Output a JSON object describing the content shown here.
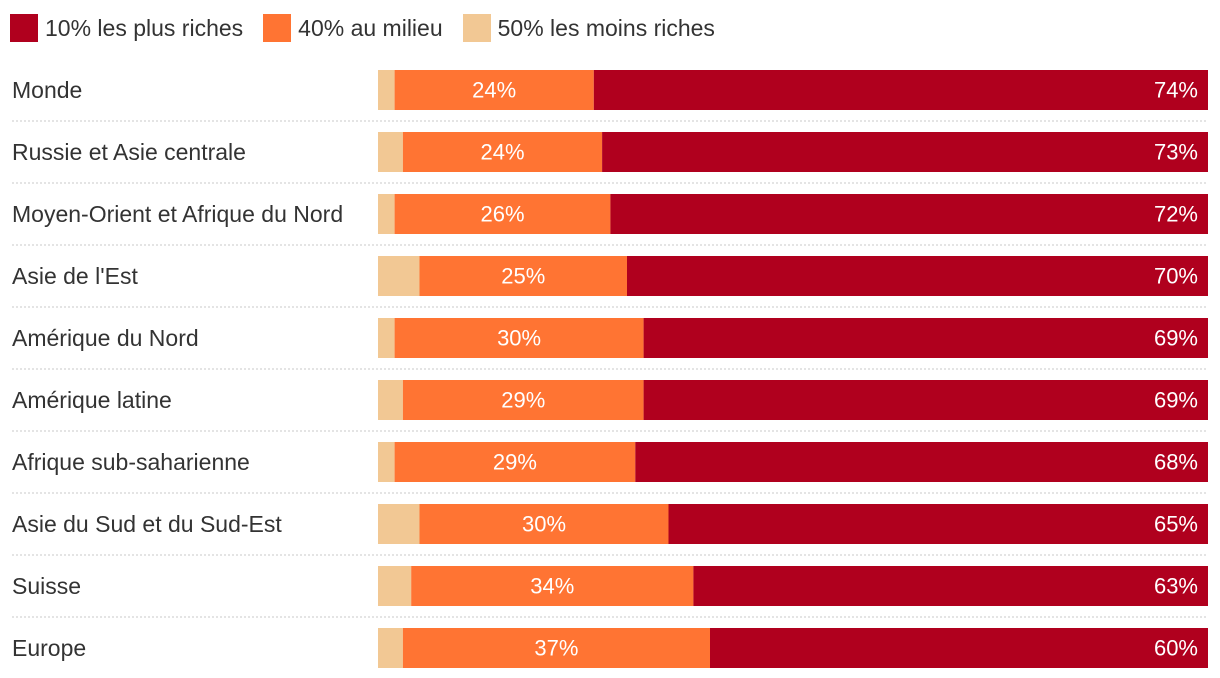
{
  "chart_data": {
    "type": "bar",
    "orientation": "horizontal",
    "stacked": true,
    "categories": [
      "Monde",
      "Russie et Asie centrale",
      "Moyen-Orient et Afrique du Nord",
      "Asie de l'Est",
      "Amérique du Nord",
      "Amérique latine",
      "Afrique sub-saharienne",
      "Asie du Sud et du Sud-Est",
      "Suisse",
      "Europe"
    ],
    "series": [
      {
        "name": "50% les moins riches",
        "color": "#f2c894",
        "values": [
          2,
          3,
          2,
          5,
          2,
          3,
          2,
          5,
          4,
          3
        ],
        "show_labels": false
      },
      {
        "name": "40% au milieu",
        "color": "#ff7433",
        "values": [
          24,
          24,
          26,
          25,
          30,
          29,
          29,
          30,
          34,
          37
        ],
        "show_labels": true,
        "label_position": "center"
      },
      {
        "name": "10% les plus riches",
        "color": "#b0001e",
        "values": [
          74,
          73,
          72,
          70,
          69,
          69,
          68,
          65,
          63,
          60
        ],
        "show_labels": true,
        "label_position": "end"
      }
    ],
    "legend": {
      "position": "top-left",
      "order": [
        "10% les plus riches",
        "40% au milieu",
        "50% les moins riches"
      ]
    },
    "value_suffix": "%",
    "xlim": [
      0,
      100
    ],
    "grid": false,
    "row_separators": "dotted"
  }
}
